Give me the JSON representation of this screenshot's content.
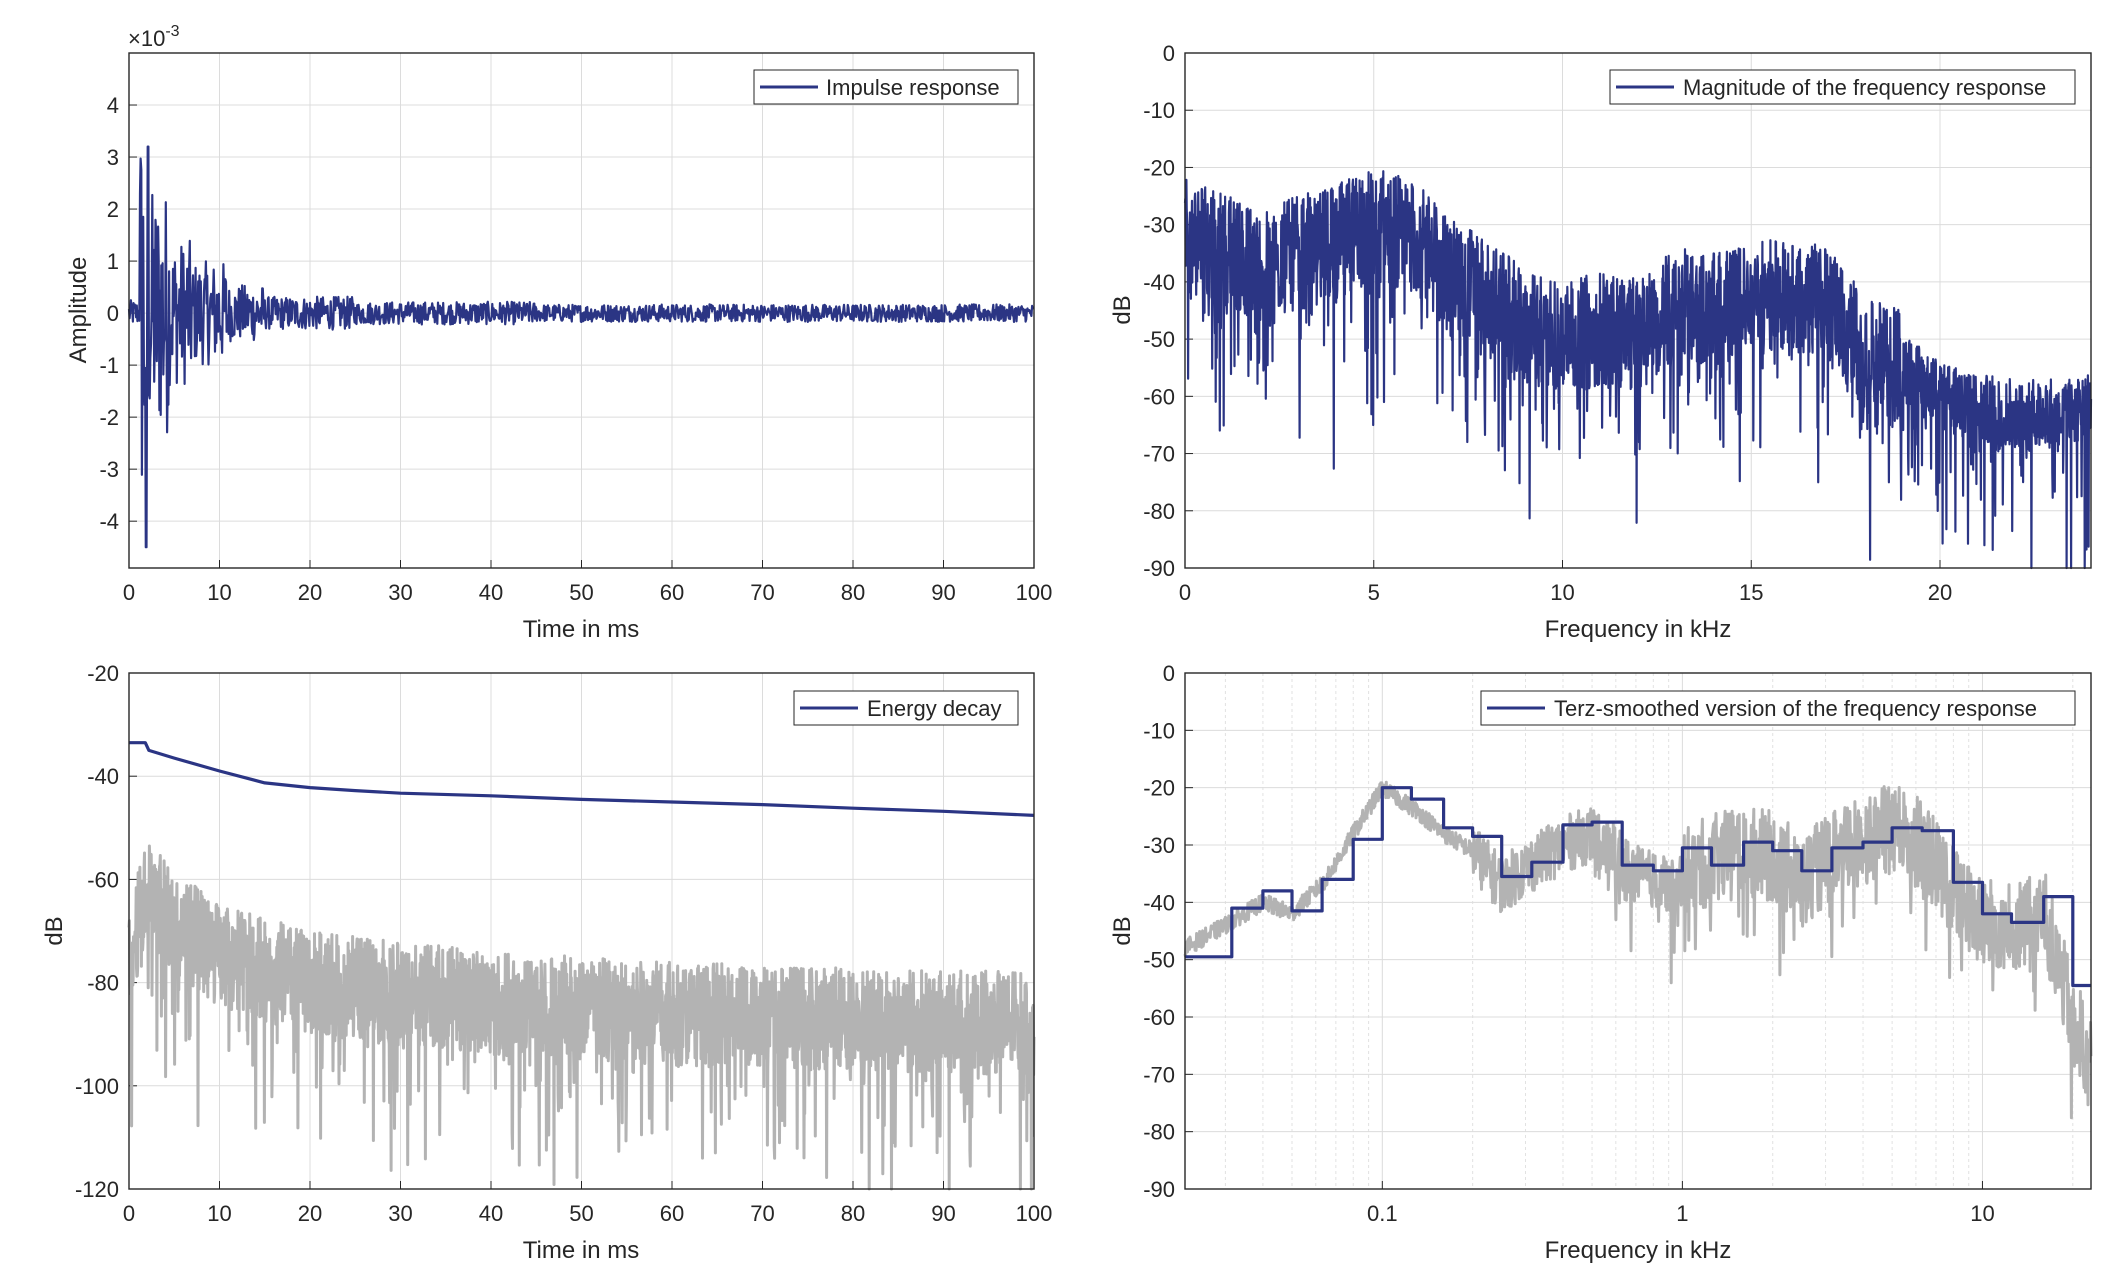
{
  "colors": {
    "series": "#2b3584",
    "background_series": "#b3b3b3",
    "grid": "#dcdcdc",
    "axes": "#262626"
  },
  "chart_data": [
    {
      "type": "line",
      "title": "",
      "xlabel": "Time in ms",
      "ylabel": "Amplitude",
      "exponent_label": "×10",
      "exponent_power": "-3",
      "xlim": [
        0,
        100
      ],
      "ylim": [
        -4.9,
        5.0
      ],
      "xticks": [
        0,
        10,
        20,
        30,
        40,
        50,
        60,
        70,
        80,
        90,
        100
      ],
      "yticks": [
        -4,
        -3,
        -2,
        -1,
        0,
        1,
        2,
        3,
        4
      ],
      "grid": true,
      "legend_position": "top-right",
      "series": [
        {
          "name": "Impulse response",
          "color": "#2b3584",
          "generator": "impulse",
          "points": [
            [
              0,
              0
            ],
            [
              1.2,
              -0.3
            ],
            [
              1.6,
              0.3
            ],
            [
              1.9,
              -4.5
            ],
            [
              2.1,
              3.2
            ],
            [
              2.4,
              -1.5
            ],
            [
              3.2,
              1.8
            ],
            [
              4.0,
              2.0
            ],
            [
              5.0,
              -1.0
            ],
            [
              6.3,
              1.5
            ],
            [
              8.8,
              1.3
            ],
            [
              9.0,
              -1.2
            ],
            [
              10.4,
              0.4
            ],
            [
              12.5,
              -0.7
            ],
            [
              15,
              0.3
            ],
            [
              20,
              -0.35
            ],
            [
              22,
              0.35
            ],
            [
              30,
              -0.2
            ],
            [
              38,
              0.2
            ],
            [
              46,
              -0.15
            ],
            [
              60,
              0.12
            ],
            [
              75,
              -0.12
            ],
            [
              100,
              0.05
            ]
          ]
        }
      ]
    },
    {
      "type": "line",
      "title": "",
      "xlabel": "Frequency in kHz",
      "ylabel": "dB",
      "xlim": [
        0,
        24
      ],
      "ylim": [
        -90,
        0
      ],
      "xticks": [
        0,
        5,
        10,
        15,
        20
      ],
      "yticks": [
        0,
        -10,
        -20,
        -30,
        -40,
        -50,
        -60,
        -70,
        -80,
        -90
      ],
      "grid": true,
      "legend_position": "top-right",
      "series": [
        {
          "name": "Magnitude of the frequency response",
          "color": "#2b3584",
          "generator": "magnitude",
          "envelope_khz_db": [
            [
              0,
              -32
            ],
            [
              1,
              -34
            ],
            [
              2,
              -37
            ],
            [
              3,
              -35
            ],
            [
              4,
              -33
            ],
            [
              5,
              -30
            ],
            [
              6,
              -32
            ],
            [
              7,
              -38
            ],
            [
              8,
              -42
            ],
            [
              9,
              -48
            ],
            [
              10,
              -50
            ],
            [
              11,
              -48
            ],
            [
              12,
              -49
            ],
            [
              13,
              -44
            ],
            [
              14,
              -45
            ],
            [
              15,
              -43
            ],
            [
              16,
              -42
            ],
            [
              17,
              -44
            ],
            [
              18,
              -52
            ],
            [
              19,
              -55
            ],
            [
              20,
              -60
            ],
            [
              21,
              -62
            ],
            [
              22,
              -63
            ],
            [
              23,
              -63
            ],
            [
              24,
              -62
            ]
          ]
        }
      ]
    },
    {
      "type": "line",
      "title": "",
      "xlabel": "Time in ms",
      "ylabel": "dB",
      "xlim": [
        0,
        100
      ],
      "ylim": [
        -120,
        -20
      ],
      "xticks": [
        0,
        10,
        20,
        30,
        40,
        50,
        60,
        70,
        80,
        90,
        100
      ],
      "yticks": [
        -20,
        -40,
        -60,
        -80,
        -100,
        -120
      ],
      "grid": true,
      "legend_position": "top-right",
      "series": [
        {
          "name": "Energy decay",
          "color": "#2b3584",
          "points": [
            [
              0,
              -33.5
            ],
            [
              1.8,
              -33.5
            ],
            [
              2.2,
              -35
            ],
            [
              5,
              -36.5
            ],
            [
              10,
              -39
            ],
            [
              15,
              -41.3
            ],
            [
              20,
              -42.2
            ],
            [
              25,
              -42.8
            ],
            [
              30,
              -43.3
            ],
            [
              40,
              -43.8
            ],
            [
              50,
              -44.5
            ],
            [
              60,
              -45
            ],
            [
              70,
              -45.5
            ],
            [
              80,
              -46.2
            ],
            [
              90,
              -46.8
            ],
            [
              100,
              -47.6
            ]
          ]
        },
        {
          "color": "#b3b3b3",
          "generator": "energy_noise",
          "center_ms_db": [
            [
              0,
              -75
            ],
            [
              2,
              -62
            ],
            [
              5,
              -68
            ],
            [
              10,
              -75
            ],
            [
              20,
              -80
            ],
            [
              40,
              -84
            ],
            [
              60,
              -86
            ],
            [
              80,
              -87
            ],
            [
              100,
              -88
            ]
          ]
        }
      ]
    },
    {
      "type": "line",
      "title": "",
      "xlabel": "Frequency in kHz",
      "ylabel": "dB",
      "xscale": "log",
      "xlim": [
        0.022,
        23
      ],
      "ylim": [
        -90,
        0
      ],
      "xticks": [
        0.1,
        1,
        10
      ],
      "xticklabels": [
        "0.1",
        "1",
        "10"
      ],
      "yticks": [
        0,
        -10,
        -20,
        -30,
        -40,
        -50,
        -60,
        -70,
        -80,
        -90
      ],
      "grid": true,
      "legend_position": "top-right",
      "series": [
        {
          "name": "Terz-smoothed version of the frequency response",
          "color": "#2b3584",
          "steps": [
            [
              0.022,
              -49.5
            ],
            [
              0.0315,
              -41
            ],
            [
              0.04,
              -38
            ],
            [
              0.05,
              -41.5
            ],
            [
              0.063,
              -36
            ],
            [
              0.08,
              -29
            ],
            [
              0.1,
              -20
            ],
            [
              0.125,
              -22
            ],
            [
              0.16,
              -27
            ],
            [
              0.2,
              -28.5
            ],
            [
              0.25,
              -35.5
            ],
            [
              0.315,
              -33
            ],
            [
              0.4,
              -26.5
            ],
            [
              0.5,
              -26
            ],
            [
              0.63,
              -33.5
            ],
            [
              0.8,
              -34.5
            ],
            [
              1.0,
              -30.5
            ],
            [
              1.25,
              -33.5
            ],
            [
              1.6,
              -29.5
            ],
            [
              2.0,
              -31
            ],
            [
              2.5,
              -34.5
            ],
            [
              3.15,
              -30.5
            ],
            [
              4.0,
              -29.5
            ],
            [
              5.0,
              -27
            ],
            [
              6.3,
              -27.5
            ],
            [
              8.0,
              -36.5
            ],
            [
              10.0,
              -42
            ],
            [
              12.5,
              -43.5
            ],
            [
              16.0,
              -39
            ],
            [
              20.0,
              -54.5
            ],
            [
              23.0,
              -54.5
            ]
          ]
        },
        {
          "color": "#b3b3b3",
          "generator": "smooth_noise",
          "center_khz_db": [
            [
              0.022,
              -48
            ],
            [
              0.03,
              -44
            ],
            [
              0.04,
              -40
            ],
            [
              0.05,
              -42
            ],
            [
              0.065,
              -36
            ],
            [
              0.08,
              -28
            ],
            [
              0.1,
              -20
            ],
            [
              0.13,
              -24
            ],
            [
              0.16,
              -28
            ],
            [
              0.2,
              -31
            ],
            [
              0.25,
              -37
            ],
            [
              0.3,
              -34
            ],
            [
              0.4,
              -30
            ],
            [
              0.5,
              -28
            ],
            [
              0.7,
              -35
            ],
            [
              0.9,
              -37
            ],
            [
              1.2,
              -33
            ],
            [
              1.6,
              -31
            ],
            [
              2.0,
              -32
            ],
            [
              2.5,
              -36
            ],
            [
              3.2,
              -32
            ],
            [
              4.0,
              -29
            ],
            [
              5.0,
              -27
            ],
            [
              6.3,
              -30
            ],
            [
              8.0,
              -38
            ],
            [
              10,
              -44
            ],
            [
              13,
              -44
            ],
            [
              16,
              -42
            ],
            [
              20,
              -60
            ],
            [
              23,
              -68
            ]
          ]
        }
      ]
    }
  ]
}
